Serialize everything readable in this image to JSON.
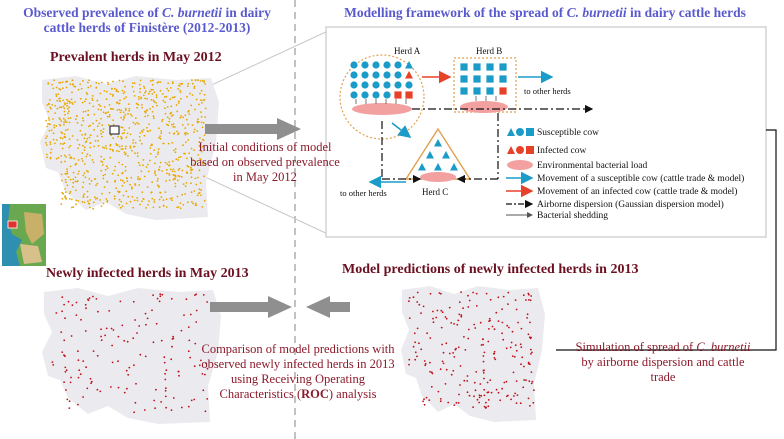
{
  "titles": {
    "observed_prefix": "Observed prevalence of ",
    "observed_italic": "C. burnetii",
    "observed_suffix": " in dairy",
    "observed_line2": "cattle herds of Finistère (2012-2013)",
    "model_prefix": "Modelling framework of the spread of ",
    "model_italic": "C. burnetii",
    "model_suffix": " in dairy cattle herds"
  },
  "maps": {
    "prevalent": "Prevalent herds in May 2012",
    "newly": "Newly infected herds in May 2013",
    "predicted": "Model predictions of newly infected herds in 2013"
  },
  "notes": {
    "initial": [
      "Initial conditions of model",
      "based on observed prevalence",
      "in May 2012"
    ],
    "comparison": [
      "Comparison of model predictions with",
      "observed newly infected herds in 2013",
      "using Receiving Operating"
    ],
    "comparison_last_prefix": "Characteristics (",
    "comparison_last_bold": "ROC",
    "comparison_last_suffix": ") analysis",
    "sim_prefix": "Simulation of spread of ",
    "sim_italic": "C. burnetii",
    "sim_line2": "by airborne dispersion and cattle",
    "sim_line3": "trade"
  },
  "diagram": {
    "herd_a": "Herd A",
    "herd_b": "Herd B",
    "herd_c": "Herd C",
    "to_other_herds": "to other herds"
  },
  "legend": [
    {
      "label": "Susceptible cow",
      "icon": "blue-shapes"
    },
    {
      "label": "Infected cow",
      "icon": "red-shapes"
    },
    {
      "label": "Environmental bacterial load",
      "icon": "pink-ellipse"
    },
    {
      "label": "Movement of a susceptible cow (cattle trade & model)",
      "icon": "blue-arrow"
    },
    {
      "label": "Movement of an infected cow (cattle trade & model)",
      "icon": "red-arrow"
    },
    {
      "label": "Airborne dispersion (Gaussian dispersion model)",
      "icon": "dash-dot-arrow"
    },
    {
      "label": "Bacterial shedding",
      "icon": "gray-arrow"
    }
  ],
  "colors": {
    "susceptible": "#1a9bc8",
    "infected": "#e8412a",
    "env_load": "#f2a0a0",
    "prevalent_dots": "#e8a800",
    "newly_dots": "#c0101a",
    "map_land": "#ebebef",
    "title_blue": "#5a5acf",
    "note_red": "#8b1a2a"
  }
}
